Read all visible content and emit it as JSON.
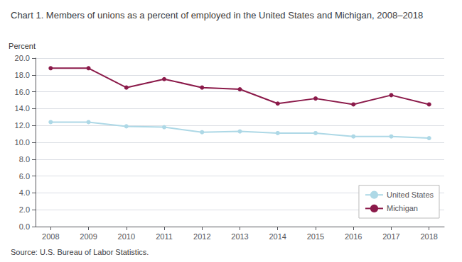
{
  "chart_data": {
    "type": "line",
    "title": "Chart 1. Members of unions as a percent of employed in the United States and Michigan, 2008–2018",
    "ylabel": "Percent",
    "source": "Source: U.S. Bureau of Labor Statistics.",
    "x": [
      2008,
      2009,
      2010,
      2011,
      2012,
      2013,
      2014,
      2015,
      2016,
      2017,
      2018
    ],
    "series": [
      {
        "name": "United States",
        "color": "#add8e6",
        "marker": "circle",
        "values": [
          12.4,
          12.4,
          11.9,
          11.8,
          11.2,
          11.3,
          11.1,
          11.1,
          10.7,
          10.7,
          10.5
        ]
      },
      {
        "name": "Michigan",
        "color": "#8b1a4a",
        "marker": "circle",
        "values": [
          18.8,
          18.8,
          16.5,
          17.5,
          16.5,
          16.3,
          14.6,
          15.2,
          14.5,
          15.6,
          14.5
        ]
      }
    ],
    "xlim": [
      2007.6,
      2018.4
    ],
    "xticks": [
      2008,
      2009,
      2010,
      2011,
      2012,
      2013,
      2014,
      2015,
      2016,
      2017,
      2018
    ],
    "ylim": [
      0,
      20.0
    ],
    "yticks": [
      {
        "value": 0,
        "label": "0.0"
      },
      {
        "value": 2,
        "label": "2.0"
      },
      {
        "value": 4,
        "label": "4.0"
      },
      {
        "value": 6,
        "label": "6.0"
      },
      {
        "value": 8,
        "label": "8.0"
      },
      {
        "value": 10,
        "label": "10.0"
      },
      {
        "value": 12,
        "label": "12.0"
      },
      {
        "value": 14,
        "label": "14.0"
      },
      {
        "value": 16,
        "label": "16.0"
      },
      {
        "value": 18,
        "label": "18.0"
      },
      {
        "value": 20,
        "label": "20.0"
      }
    ],
    "grid": true,
    "legend": "lower right"
  }
}
